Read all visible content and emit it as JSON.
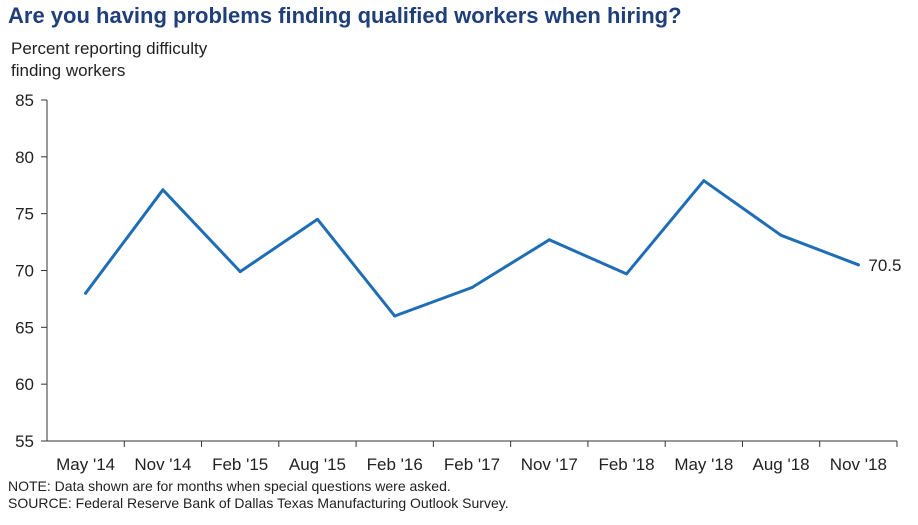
{
  "chart_data": {
    "type": "line",
    "title": "Are you having problems finding qualified workers when hiring?",
    "ylabel_lines": [
      "Percent reporting difficulty",
      "finding workers"
    ],
    "categories": [
      "May '14",
      "Nov '14",
      "Feb '15",
      "Aug '15",
      "Feb '16",
      "Feb '17",
      "Nov '17",
      "Feb '18",
      "May '18",
      "Aug '18",
      "Nov '18"
    ],
    "series": [
      {
        "values": [
          68.0,
          77.1,
          69.9,
          74.5,
          66.0,
          68.5,
          72.7,
          69.7,
          77.9,
          73.1,
          70.5
        ],
        "color": "#1f6eb5"
      }
    ],
    "ylim": [
      55,
      85
    ],
    "yticks": [
      55,
      60,
      65,
      70,
      75,
      80,
      85
    ],
    "end_label": "70.5",
    "grid": false,
    "notes": [
      "NOTE: Data shown are for months when special questions were asked.",
      "SOURCE: Federal Reserve Bank of Dallas Texas Manufacturing Outlook Survey."
    ]
  }
}
